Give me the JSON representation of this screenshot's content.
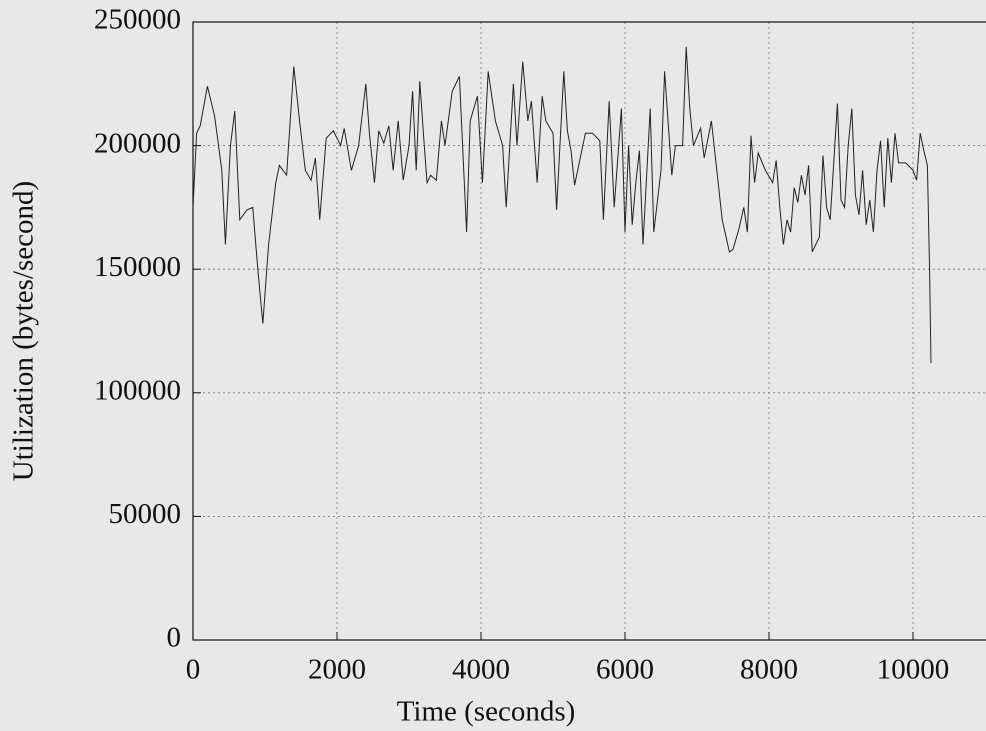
{
  "chart_data": {
    "type": "line",
    "xlabel": "Time (seconds)",
    "ylabel": "Utilization (bytes/second)",
    "xlim": [
      0,
      11000
    ],
    "ylim": [
      0,
      250000
    ],
    "xticks": [
      0,
      2000,
      4000,
      6000,
      8000,
      10000
    ],
    "yticks": [
      0,
      50000,
      100000,
      150000,
      200000,
      250000
    ],
    "grid": true,
    "color": "#222222",
    "x": [
      0,
      50,
      100,
      200,
      300,
      400,
      450,
      520,
      580,
      650,
      750,
      830,
      900,
      970,
      1050,
      1150,
      1200,
      1300,
      1400,
      1480,
      1560,
      1640,
      1700,
      1760,
      1850,
      1950,
      2050,
      2100,
      2200,
      2300,
      2400,
      2450,
      2520,
      2580,
      2650,
      2720,
      2780,
      2850,
      2920,
      3000,
      3050,
      3100,
      3150,
      3200,
      3250,
      3300,
      3380,
      3450,
      3500,
      3600,
      3700,
      3800,
      3850,
      3950,
      4020,
      4100,
      4200,
      4300,
      4350,
      4450,
      4500,
      4580,
      4650,
      4700,
      4780,
      4850,
      4900,
      5000,
      5050,
      5150,
      5200,
      5250,
      5300,
      5450,
      5550,
      5650,
      5700,
      5780,
      5850,
      5950,
      6000,
      6050,
      6100,
      6150,
      6200,
      6250,
      6350,
      6400,
      6500,
      6550,
      6650,
      6700,
      6800,
      6850,
      6900,
      6950,
      7050,
      7100,
      7200,
      7350,
      7450,
      7500,
      7580,
      7650,
      7700,
      7750,
      7800,
      7850,
      7950,
      8050,
      8100,
      8150,
      8200,
      8250,
      8300,
      8350,
      8400,
      8450,
      8500,
      8550,
      8600,
      8650,
      8700,
      8750,
      8800,
      8850,
      8950,
      9000,
      9050,
      9100,
      9150,
      9200,
      9250,
      9300,
      9350,
      9400,
      9450,
      9500,
      9550,
      9600,
      9650,
      9700,
      9750,
      9800,
      9900,
      10000,
      10050,
      10100,
      10150,
      10200,
      10230,
      10250
    ],
    "values": [
      175000,
      205000,
      208000,
      224000,
      212000,
      190000,
      160000,
      200000,
      214000,
      170000,
      174000,
      175000,
      150000,
      128000,
      160000,
      185000,
      192000,
      188000,
      232000,
      210000,
      190000,
      186000,
      195000,
      170000,
      203000,
      206000,
      200000,
      207000,
      190000,
      200000,
      225000,
      205000,
      185000,
      206000,
      201000,
      208000,
      190000,
      210000,
      186000,
      200000,
      222000,
      190000,
      226000,
      205000,
      185000,
      188000,
      186000,
      210000,
      200000,
      222000,
      228000,
      165000,
      210000,
      220000,
      185000,
      230000,
      210000,
      200000,
      175000,
      225000,
      200000,
      234000,
      210000,
      218000,
      185000,
      220000,
      210000,
      205000,
      174000,
      230000,
      206000,
      198000,
      184000,
      205000,
      205000,
      202000,
      170000,
      218000,
      175000,
      215000,
      165000,
      200000,
      168000,
      185000,
      198000,
      160000,
      215000,
      165000,
      190000,
      230000,
      188000,
      200000,
      200000,
      240000,
      215000,
      200000,
      207000,
      195000,
      210000,
      170000,
      157000,
      158000,
      166000,
      175000,
      165000,
      204000,
      185000,
      197000,
      190000,
      185000,
      194000,
      175000,
      160000,
      170000,
      165000,
      183000,
      177000,
      188000,
      180000,
      192000,
      157000,
      160000,
      163000,
      196000,
      175000,
      170000,
      217000,
      178000,
      175000,
      200000,
      215000,
      180000,
      172000,
      190000,
      168000,
      178000,
      165000,
      190000,
      202000,
      175000,
      203000,
      185000,
      205000,
      193000,
      193000,
      190000,
      186000,
      205000,
      198000,
      192000,
      150000,
      112000
    ]
  }
}
